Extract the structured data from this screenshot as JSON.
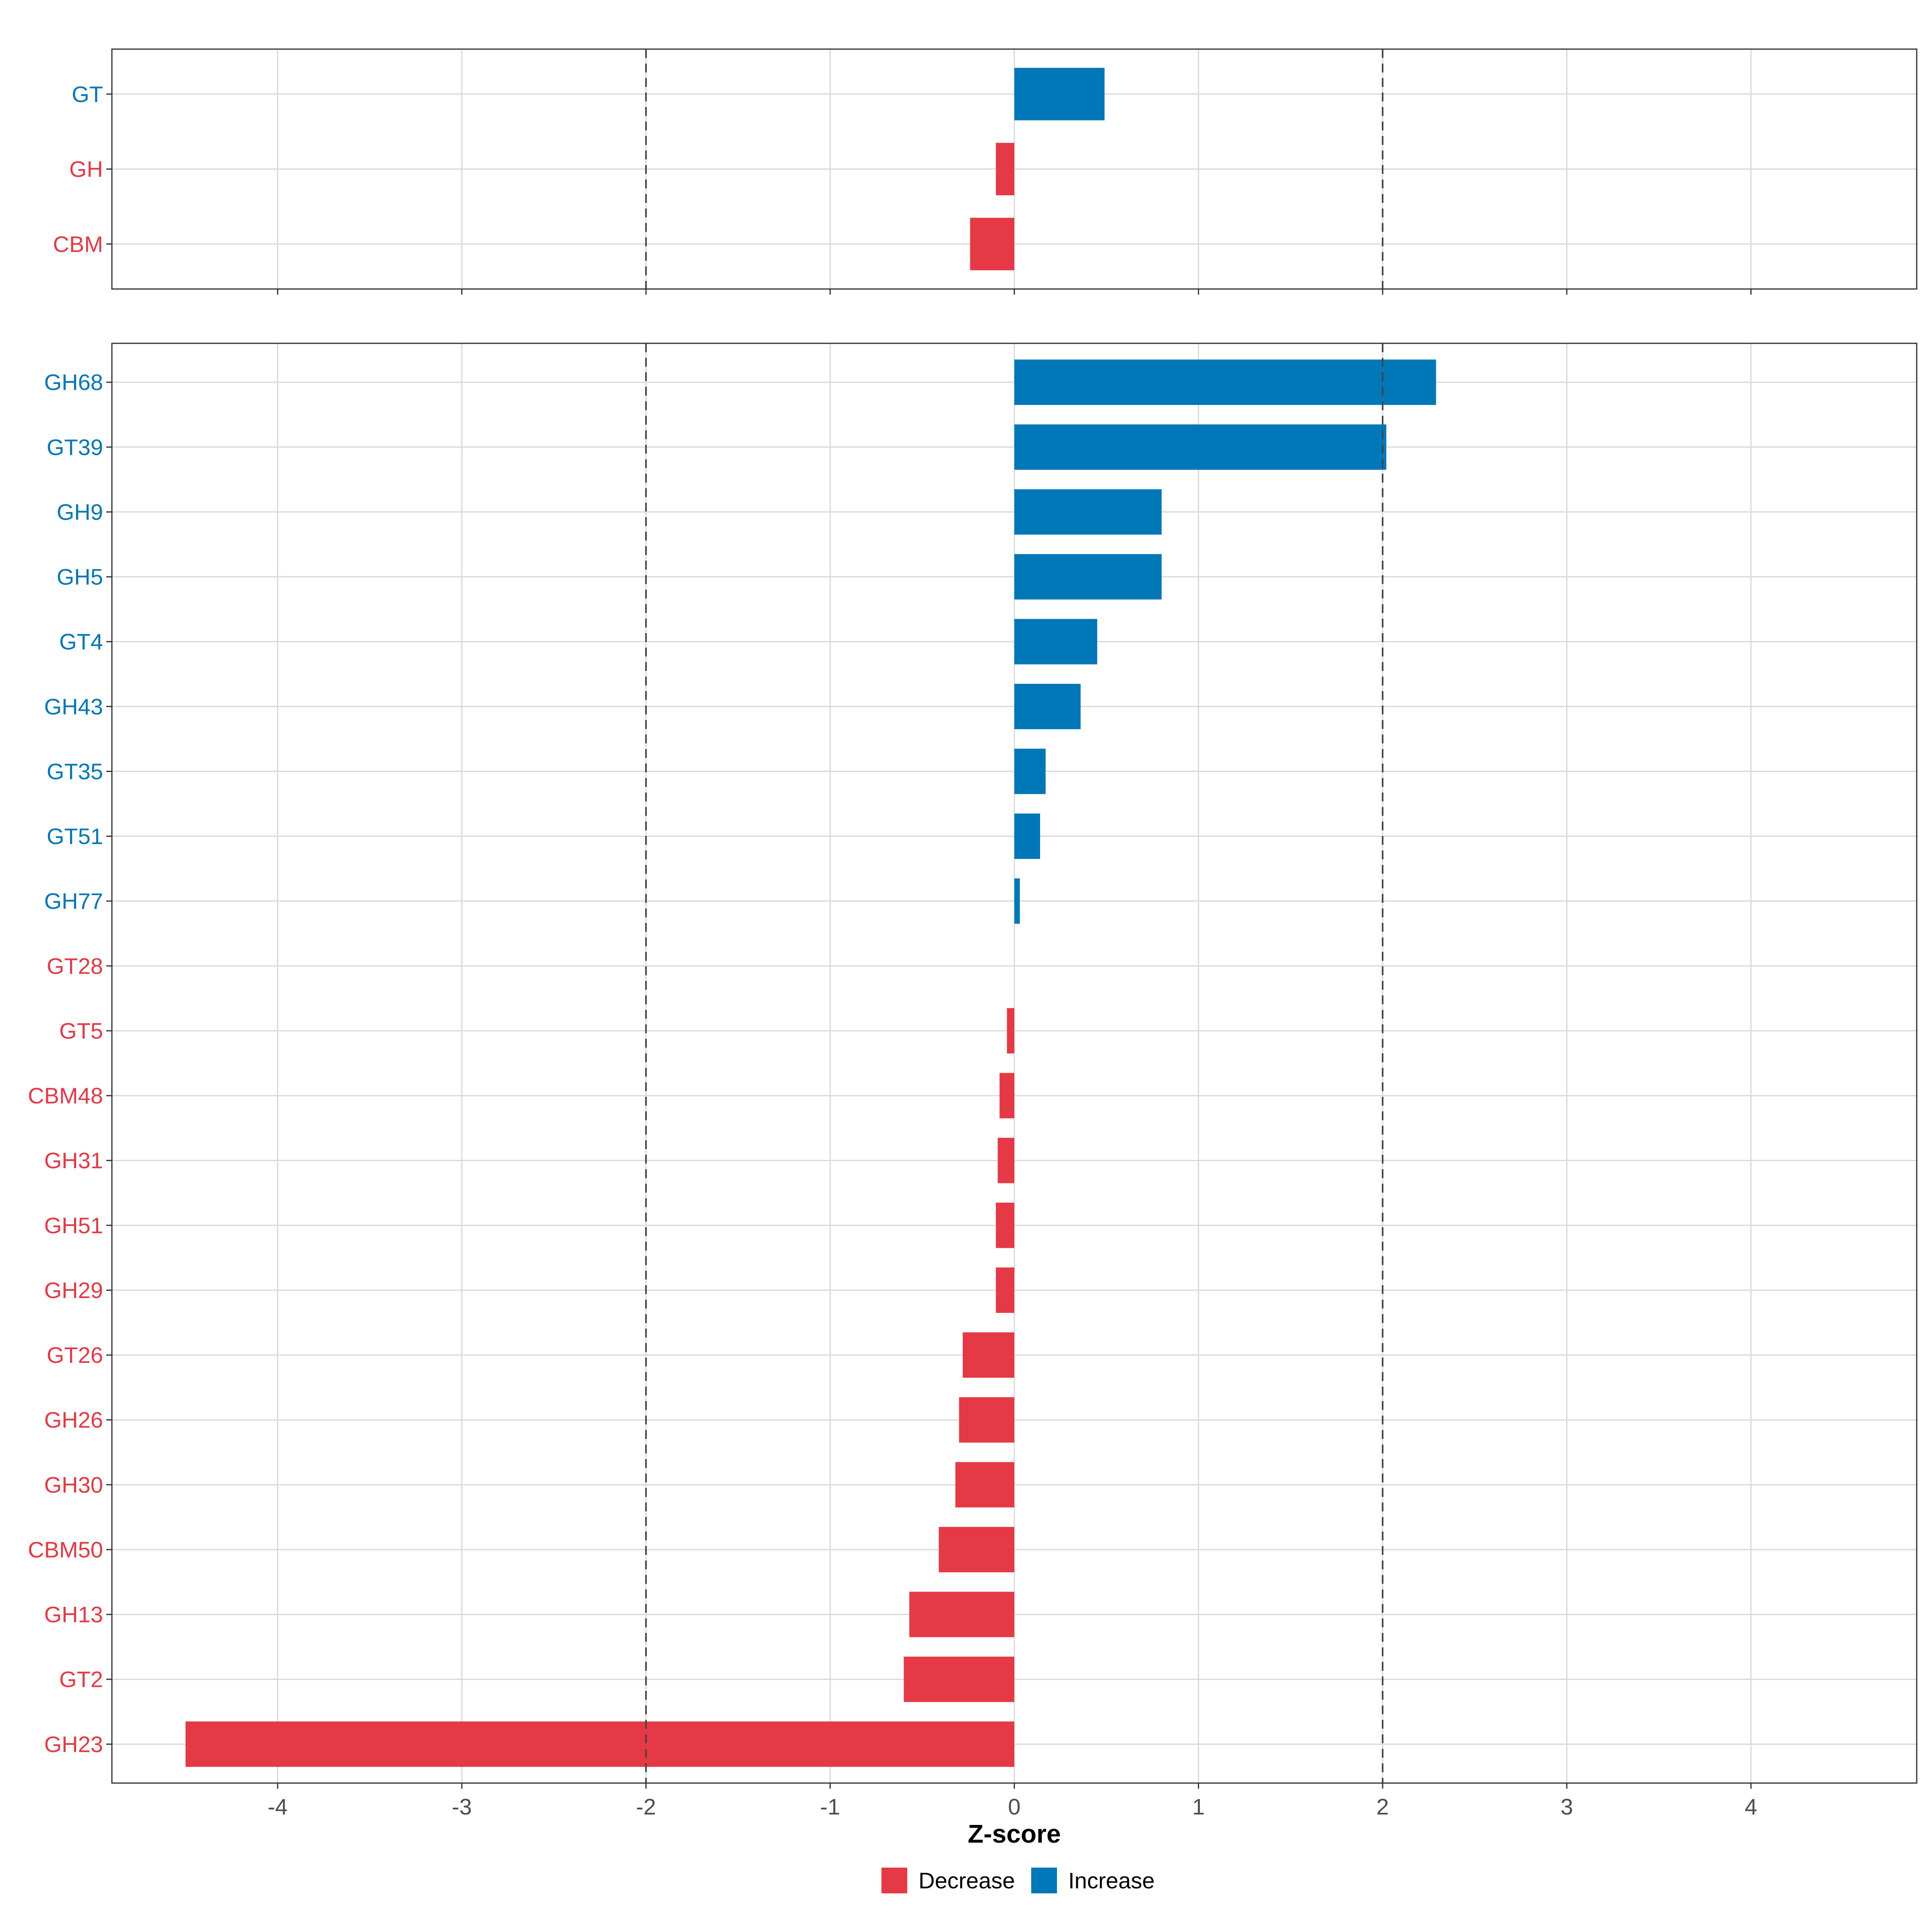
{
  "chart_data": {
    "type": "bar",
    "orientation": "horizontal",
    "xlabel": "Z-score",
    "xlim": [
      -4.9,
      4.9
    ],
    "xticks": [
      -4,
      -3,
      -2,
      -1,
      0,
      1,
      2,
      3,
      4
    ],
    "xtick_labels": [
      "-4",
      "-3",
      "-2",
      "-1",
      "0",
      "1",
      "2",
      "3",
      "4"
    ],
    "threshold_lines": [
      -2,
      2
    ],
    "colors": {
      "Decrease": "#E63946",
      "Increase": "#0077B6"
    },
    "legend": [
      {
        "label": "Decrease",
        "color": "#E63946"
      },
      {
        "label": "Increase",
        "color": "#0077B6"
      }
    ],
    "panels": [
      {
        "name": "top",
        "bars": [
          {
            "category": "GT",
            "value": 0.49,
            "direction": "Increase"
          },
          {
            "category": "GH",
            "value": -0.1,
            "direction": "Decrease"
          },
          {
            "category": "CBM",
            "value": -0.24,
            "direction": "Decrease"
          }
        ]
      },
      {
        "name": "bottom",
        "bars": [
          {
            "category": "GH68",
            "value": 2.29,
            "direction": "Increase"
          },
          {
            "category": "GT39",
            "value": 2.02,
            "direction": "Increase"
          },
          {
            "category": "GH9",
            "value": 0.8,
            "direction": "Increase"
          },
          {
            "category": "GH5",
            "value": 0.8,
            "direction": "Increase"
          },
          {
            "category": "GT4",
            "value": 0.45,
            "direction": "Increase"
          },
          {
            "category": "GH43",
            "value": 0.36,
            "direction": "Increase"
          },
          {
            "category": "GT35",
            "value": 0.17,
            "direction": "Increase"
          },
          {
            "category": "GT51",
            "value": 0.14,
            "direction": "Increase"
          },
          {
            "category": "GH77",
            "value": 0.03,
            "direction": "Increase"
          },
          {
            "category": "GT28",
            "value": 0.0,
            "direction": "Decrease"
          },
          {
            "category": "GT5",
            "value": -0.04,
            "direction": "Decrease"
          },
          {
            "category": "CBM48",
            "value": -0.08,
            "direction": "Decrease"
          },
          {
            "category": "GH31",
            "value": -0.09,
            "direction": "Decrease"
          },
          {
            "category": "GH51",
            "value": -0.1,
            "direction": "Decrease"
          },
          {
            "category": "GH29",
            "value": -0.1,
            "direction": "Decrease"
          },
          {
            "category": "GT26",
            "value": -0.28,
            "direction": "Decrease"
          },
          {
            "category": "GH26",
            "value": -0.3,
            "direction": "Decrease"
          },
          {
            "category": "GH30",
            "value": -0.32,
            "direction": "Decrease"
          },
          {
            "category": "CBM50",
            "value": -0.41,
            "direction": "Decrease"
          },
          {
            "category": "GH13",
            "value": -0.57,
            "direction": "Decrease"
          },
          {
            "category": "GT2",
            "value": -0.6,
            "direction": "Decrease"
          },
          {
            "category": "GH23",
            "value": -4.5,
            "direction": "Decrease"
          }
        ]
      }
    ]
  }
}
